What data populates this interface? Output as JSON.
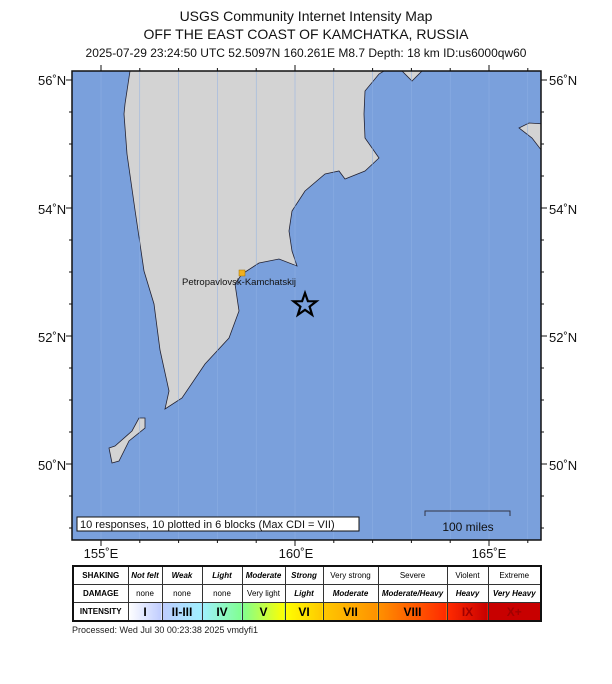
{
  "header": {
    "title": "USGS Community Internet Intensity Map",
    "region": "OFF THE EAST COAST OF KAMCHATKA, RUSSIA",
    "event_line": "2025-07-29 23:24:50 UTC 52.5097N 160.261E M8.7 Depth: 18 km ID:us6000qw60"
  },
  "map": {
    "lat_labels": [
      "56˚N",
      "54˚N",
      "52˚N",
      "50˚N"
    ],
    "lon_labels": [
      "155˚E",
      "160˚E",
      "165˚E"
    ],
    "city": "Petropavlovsk-Kamchatskij",
    "epicenter_icon": "star-icon",
    "responses_note": "10 responses, 10 plotted in 6 blocks (Max CDI = VII)",
    "scale_label": "100 miles",
    "colors": {
      "ocean": "#7aa0dc",
      "land": "#d3d3d3",
      "city": "#f0b020"
    }
  },
  "legend": {
    "row_labels": [
      "SHAKING",
      "DAMAGE",
      "INTENSITY"
    ],
    "shaking": [
      "Not felt",
      "Weak",
      "Light",
      "Moderate",
      "Strong",
      "Very strong",
      "Severe",
      "Violent",
      "Extreme"
    ],
    "damage": [
      "none",
      "none",
      "none",
      "Very light",
      "Light",
      "Moderate",
      "Moderate/Heavy",
      "Heavy",
      "Very Heavy"
    ],
    "intensity": [
      "I",
      "II-III",
      "IV",
      "V",
      "VI",
      "VII",
      "VIII",
      "IX",
      "X+"
    ],
    "intensity_colors": [
      "#ffffff",
      "#bfccff",
      "#9ff0ff",
      "#80ff90",
      "#ffff00",
      "#ffc800",
      "#ff9100",
      "#ff2a00",
      "#c80000"
    ]
  },
  "footer": {
    "processed": "Processed: Wed Jul 30 00:23:38 2025 vmdyfi1"
  }
}
